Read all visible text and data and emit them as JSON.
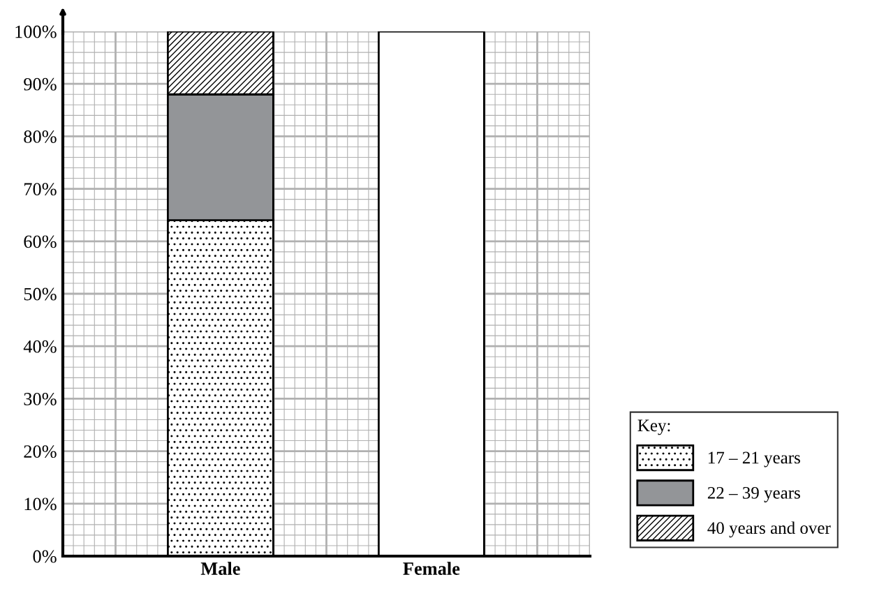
{
  "chart_data": {
    "type": "bar",
    "stacked": true,
    "categories": [
      "Male",
      "Female"
    ],
    "series": [
      {
        "name": "17 – 21 years",
        "color": "#000000",
        "values": [
          64,
          null
        ]
      },
      {
        "name": "22 – 39 years",
        "color": "#939598",
        "values": [
          24,
          null
        ]
      },
      {
        "name": "40 years and over",
        "color": "#000000",
        "values": [
          12,
          null
        ]
      },
      {
        "color": "#ffffff",
        "values": [
          null,
          100
        ]
      }
    ],
    "ylim": [
      0,
      100
    ],
    "yticks": [
      {
        "value": 0,
        "label": "0%"
      },
      {
        "value": 10,
        "label": "10%"
      },
      {
        "value": 20,
        "label": "20%"
      },
      {
        "value": 30,
        "label": "30%"
      },
      {
        "value": 40,
        "label": "40%"
      },
      {
        "value": 50,
        "label": "50%"
      },
      {
        "value": 60,
        "label": "60%"
      },
      {
        "value": 70,
        "label": "70%"
      },
      {
        "value": 80,
        "label": "80%"
      },
      {
        "value": 90,
        "label": "90%"
      },
      {
        "value": 100,
        "label": "100%"
      }
    ],
    "grid": true,
    "legend": "bottom right",
    "legend_title": "Key:"
  }
}
